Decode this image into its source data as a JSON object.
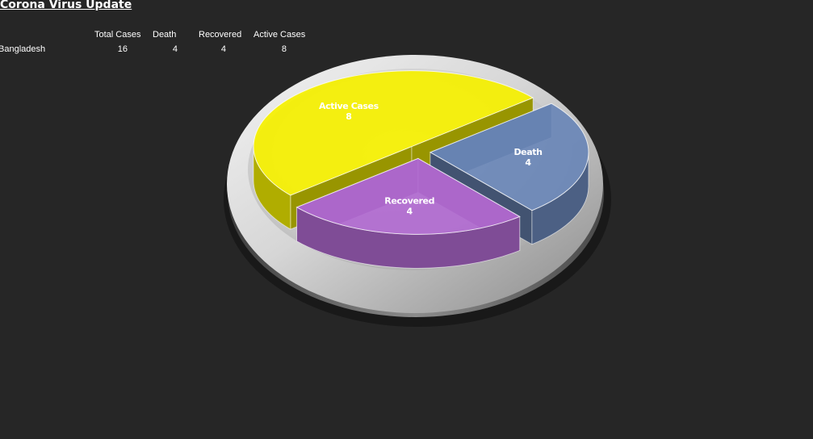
{
  "sheet": {
    "title": "Corona Virus Update"
  },
  "table": {
    "headers": [
      "Total Cases",
      "Death",
      "Recovered",
      "Active Cases"
    ],
    "rows": [
      {
        "country": "Bangladesh",
        "values": [
          "16",
          "4",
          "4",
          "8"
        ]
      }
    ]
  },
  "chart_data": {
    "type": "pie",
    "categories": [
      "Active Cases",
      "Death",
      "Recovered"
    ],
    "values": [
      8,
      4,
      4
    ],
    "colors": [
      "#f5f000",
      "#6a86b7",
      "#b06ad0"
    ],
    "title": "",
    "legend": "none",
    "data_labels": true,
    "three_d": true,
    "exploded": true
  }
}
